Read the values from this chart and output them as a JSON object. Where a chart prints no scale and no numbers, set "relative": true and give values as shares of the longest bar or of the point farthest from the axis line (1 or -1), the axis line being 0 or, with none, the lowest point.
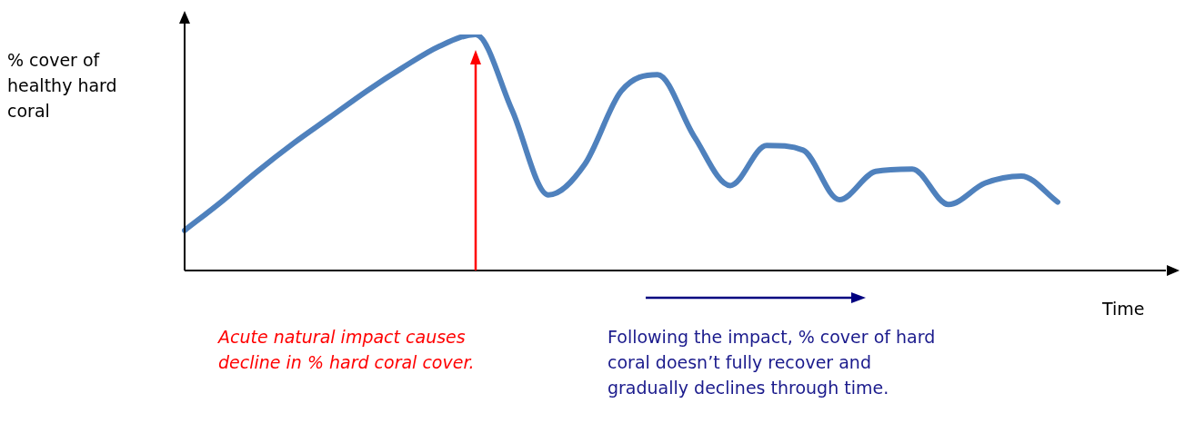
{
  "chart_data": {
    "type": "line",
    "relative": true,
    "xlabel": "Time",
    "ylabel": "% cover of healthy hard coral",
    "categories": [
      null,
      null,
      null,
      null,
      null,
      null,
      null,
      null,
      null,
      null,
      null,
      null,
      null,
      null,
      null,
      null,
      null,
      null,
      null,
      null,
      null,
      null,
      null,
      null,
      null
    ],
    "series": [
      {
        "color": "#4f81bd",
        "values": [
          0.17,
          0.29,
          0.42,
          0.54,
          0.65,
          0.76,
          0.86,
          0.95,
          1,
          0.68,
          0.32,
          0.45,
          0.76,
          0.83,
          0.57,
          0.36,
          0.53,
          0.51,
          0.3,
          0.42,
          0.43,
          0.28,
          0.37,
          0.4,
          0.29
        ]
      }
    ],
    "marker": "none",
    "line_style": "solid",
    "legend": false,
    "annotations": [
      "Acute natural impact causes decline in % hard coral cover.",
      "Following the impact, % cover of hard coral doesn’t fully recover and gradually declines through time."
    ]
  }
}
